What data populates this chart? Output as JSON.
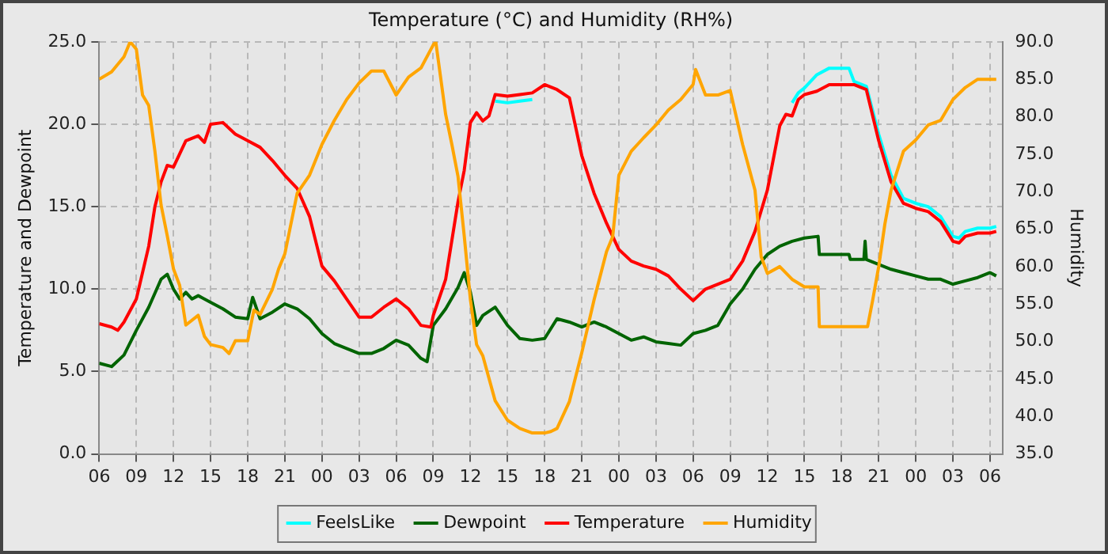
{
  "chart_data": {
    "type": "line",
    "title": "Temperature (°C) and Humidity (RH%)",
    "ylabel": "Temperature and Dewpoint",
    "y2label": "Humidity",
    "xlim": [
      6,
      79
    ],
    "xticks": [
      {
        "value": 6,
        "label": "06"
      },
      {
        "value": 9,
        "label": "09"
      },
      {
        "value": 12,
        "label": "12"
      },
      {
        "value": 15,
        "label": "15"
      },
      {
        "value": 18,
        "label": "18"
      },
      {
        "value": 21,
        "label": "21"
      },
      {
        "value": 24,
        "label": "00"
      },
      {
        "value": 27,
        "label": "03"
      },
      {
        "value": 30,
        "label": "06"
      },
      {
        "value": 33,
        "label": "09"
      },
      {
        "value": 36,
        "label": "12"
      },
      {
        "value": 39,
        "label": "15"
      },
      {
        "value": 42,
        "label": "18"
      },
      {
        "value": 45,
        "label": "21"
      },
      {
        "value": 48,
        "label": "00"
      },
      {
        "value": 51,
        "label": "03"
      },
      {
        "value": 54,
        "label": "06"
      },
      {
        "value": 57,
        "label": "09"
      },
      {
        "value": 60,
        "label": "12"
      },
      {
        "value": 63,
        "label": "15"
      },
      {
        "value": 66,
        "label": "18"
      },
      {
        "value": 69,
        "label": "21"
      },
      {
        "value": 72,
        "label": "00"
      },
      {
        "value": 75,
        "label": "03"
      },
      {
        "value": 78,
        "label": "06"
      }
    ],
    "ylim": [
      0,
      25
    ],
    "yticks": [
      {
        "value": 0,
        "label": "0.0"
      },
      {
        "value": 5,
        "label": "5.0"
      },
      {
        "value": 10,
        "label": "10.0"
      },
      {
        "value": 15,
        "label": "15.0"
      },
      {
        "value": 20,
        "label": "20.0"
      },
      {
        "value": 25,
        "label": "25.0"
      }
    ],
    "y2lim": [
      35,
      90
    ],
    "y2ticks": [
      {
        "value": 35,
        "label": "35.0"
      },
      {
        "value": 40,
        "label": "40.0"
      },
      {
        "value": 45,
        "label": "45.0"
      },
      {
        "value": 50,
        "label": "50.0"
      },
      {
        "value": 55,
        "label": "55.0"
      },
      {
        "value": 60,
        "label": "60.0"
      },
      {
        "value": 65,
        "label": "65.0"
      },
      {
        "value": 70,
        "label": "70.0"
      },
      {
        "value": 75,
        "label": "75.0"
      },
      {
        "value": 80,
        "label": "80.0"
      },
      {
        "value": 85,
        "label": "85.0"
      },
      {
        "value": 90,
        "label": "90.0"
      }
    ],
    "grid": true,
    "legend": "bottom",
    "marker": "none",
    "line_style": "solid",
    "series": [
      {
        "name": "FeelsLike",
        "color": "#00ffff",
        "x": [
          38,
          39,
          40,
          41,
          41.5,
          62,
          62.5,
          63,
          64,
          65,
          66,
          66.6,
          67,
          68,
          69,
          70,
          71,
          72,
          73,
          74,
          75,
          75.5,
          76,
          77,
          78,
          78.5
        ],
        "values": [
          21.4,
          21.3,
          21.4,
          21.5,
          null,
          21.3,
          21.9,
          22.2,
          23.0,
          23.4,
          23.4,
          23.4,
          22.6,
          22.3,
          19.4,
          16.9,
          15.5,
          15.2,
          15.0,
          14.4,
          13.2,
          13.1,
          13.5,
          13.7,
          13.7,
          13.8
        ]
      },
      {
        "name": "Dewpoint",
        "color": "#006400",
        "x": [
          6,
          7,
          8,
          9,
          10,
          11,
          11.5,
          12,
          12.5,
          13,
          13.5,
          14,
          15,
          16,
          17,
          18,
          18.4,
          19,
          20,
          21,
          22,
          23,
          24,
          25,
          26,
          27,
          28,
          29,
          30,
          31,
          32,
          32.5,
          33,
          34,
          35,
          35.5,
          36,
          36.5,
          37,
          38,
          39,
          40,
          41,
          42,
          43,
          44,
          45,
          46,
          47,
          48,
          49,
          50,
          51,
          52,
          53,
          54,
          55,
          56,
          57,
          58,
          59,
          60,
          61,
          62,
          63,
          64.1,
          64.2,
          66.6,
          66.7,
          67.8,
          67.9,
          68,
          69,
          70,
          71,
          72,
          73,
          74,
          75,
          76,
          77,
          78,
          78.5
        ],
        "values": [
          5.5,
          5.3,
          6.0,
          7.5,
          8.9,
          10.6,
          10.9,
          10.0,
          9.4,
          9.8,
          9.4,
          9.6,
          9.2,
          8.8,
          8.3,
          8.2,
          9.5,
          8.2,
          8.6,
          9.1,
          8.8,
          8.2,
          7.3,
          6.7,
          6.4,
          6.1,
          6.1,
          6.4,
          6.9,
          6.6,
          5.8,
          5.6,
          7.8,
          8.8,
          10.1,
          11.0,
          9.8,
          7.8,
          8.4,
          8.9,
          7.8,
          7.0,
          6.9,
          7.0,
          8.2,
          8.0,
          7.7,
          8.0,
          7.7,
          7.3,
          6.9,
          7.1,
          6.8,
          6.7,
          6.6,
          7.3,
          7.5,
          7.8,
          9.1,
          10.0,
          11.2,
          12.1,
          12.6,
          12.9,
          13.1,
          13.2,
          12.1,
          12.1,
          11.8,
          11.8,
          12.9,
          11.8,
          11.5,
          11.2,
          11.0,
          10.8,
          10.6,
          10.6,
          10.3,
          10.5,
          10.7,
          11.0,
          10.8
        ]
      },
      {
        "name": "Temperature",
        "color": "#ff0000",
        "x": [
          6,
          7,
          7.5,
          8,
          9,
          10,
          10.5,
          11,
          11.5,
          12,
          13,
          14,
          14.5,
          15,
          16,
          17,
          18,
          19,
          20,
          21,
          22,
          23,
          24,
          25,
          26,
          27,
          28,
          29,
          30,
          31,
          32,
          32.8,
          33,
          34,
          35,
          35.5,
          36,
          36.5,
          37,
          37.5,
          38,
          39,
          40,
          41,
          42,
          43,
          44,
          45,
          46,
          47,
          48,
          49,
          50,
          51,
          52,
          53,
          54,
          55,
          56,
          57,
          58,
          59,
          60,
          61,
          61.5,
          62,
          62.5,
          63,
          64,
          65,
          66,
          67,
          68,
          69,
          70,
          71,
          72,
          73,
          74,
          75,
          75.5,
          76,
          77,
          78,
          78.5
        ],
        "values": [
          7.9,
          7.7,
          7.5,
          8.0,
          9.4,
          12.6,
          15,
          16.5,
          17.5,
          17.4,
          19.0,
          19.3,
          18.9,
          20.0,
          20.1,
          19.4,
          19.0,
          18.6,
          17.8,
          16.9,
          16.1,
          14.4,
          11.4,
          10.5,
          9.4,
          8.3,
          8.3,
          8.9,
          9.4,
          8.8,
          7.8,
          7.7,
          8.4,
          10.6,
          15.3,
          17.2,
          20.1,
          20.7,
          20.2,
          20.5,
          21.8,
          21.7,
          21.8,
          21.9,
          22.4,
          22.1,
          21.6,
          18.1,
          15.8,
          14.0,
          12.4,
          11.7,
          11.4,
          11.2,
          10.8,
          10.0,
          9.3,
          10.0,
          10.3,
          10.6,
          11.7,
          13.5,
          16.0,
          19.9,
          20.6,
          20.5,
          21.5,
          21.8,
          22.0,
          22.4,
          22.4,
          22.4,
          22.1,
          19.0,
          16.5,
          15.2,
          14.9,
          14.7,
          14.1,
          12.9,
          12.8,
          13.2,
          13.4,
          13.4,
          13.5
        ]
      },
      {
        "name": "Humidity",
        "color": "#ffa500",
        "axis": "y2",
        "x": [
          6,
          7,
          8,
          8.5,
          9,
          9.5,
          10,
          10.5,
          11,
          11.5,
          12,
          12.5,
          13,
          14,
          14.5,
          15,
          16,
          16.5,
          17,
          18,
          18.5,
          19,
          20,
          20.5,
          21,
          22,
          23,
          24,
          25,
          26,
          27,
          28,
          29,
          30,
          31,
          32,
          33,
          33.2,
          34,
          34.5,
          35,
          35.5,
          36,
          36.5,
          37,
          38,
          39,
          40,
          41,
          42,
          42.5,
          43,
          44,
          45,
          46,
          47,
          47.5,
          48,
          49,
          50,
          51,
          52,
          53,
          54,
          54.2,
          55,
          56,
          57,
          58,
          59,
          59.5,
          60,
          61,
          62,
          63,
          64.1,
          64.2,
          68.1,
          68.5,
          69,
          69.5,
          70,
          71,
          72,
          73,
          74,
          75,
          76,
          77,
          78,
          78.5
        ],
        "values": [
          85.0,
          86.0,
          88.0,
          90.0,
          89.0,
          82.9,
          81.5,
          75.4,
          68.2,
          64.1,
          59.7,
          57.5,
          52.2,
          53.5,
          50.7,
          49.6,
          49.2,
          48.4,
          50.1,
          50.1,
          54.2,
          53.6,
          57.0,
          59.7,
          61.7,
          69.8,
          72.2,
          76.3,
          79.5,
          82.3,
          84.5,
          86.1,
          86.1,
          82.9,
          85.3,
          86.5,
          89.6,
          90.0,
          80.3,
          76.3,
          72.0,
          64.1,
          55.6,
          49.6,
          48.1,
          42.1,
          39.5,
          38.4,
          37.8,
          37.8,
          38.0,
          38.4,
          42.0,
          48.5,
          55.6,
          62.0,
          64.0,
          72.2,
          75.4,
          77.2,
          78.9,
          80.9,
          82.3,
          84.3,
          86.3,
          82.9,
          82.9,
          83.5,
          76.3,
          70.2,
          61.3,
          59.1,
          60.0,
          58.3,
          57.3,
          57.3,
          52.0,
          52.0,
          55.4,
          60.0,
          65.7,
          70.2,
          75.4,
          76.9,
          78.9,
          79.5,
          82.3,
          83.9,
          85.0,
          85.0,
          85.0
        ]
      }
    ]
  }
}
